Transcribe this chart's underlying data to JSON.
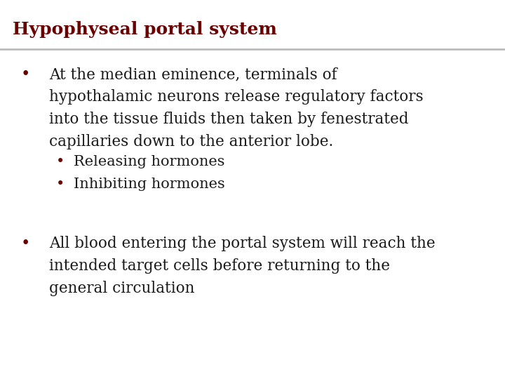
{
  "title": "Hypophyseal portal system",
  "title_color": "#6B0000",
  "title_fontsize": 18,
  "separator_color": "#BBBBBB",
  "slide_background": "#FFFFFF",
  "text_color": "#1A1A1A",
  "bullet_color": "#6B0000",
  "body_fontsize": 15.5,
  "sub_fontsize": 15,
  "bullet1_lines": [
    "At the median eminence, terminals of",
    "hypothalamic neurons release regulatory factors",
    "into the tissue fluids then taken by fenestrated",
    "capillaries down to the anterior lobe."
  ],
  "sub_bullet1": "Releasing hormones",
  "sub_bullet2": "Inhibiting hormones",
  "bullet2_lines": [
    "All blood entering the portal system will reach the",
    "intended target cells before returning to the",
    "general circulation"
  ]
}
